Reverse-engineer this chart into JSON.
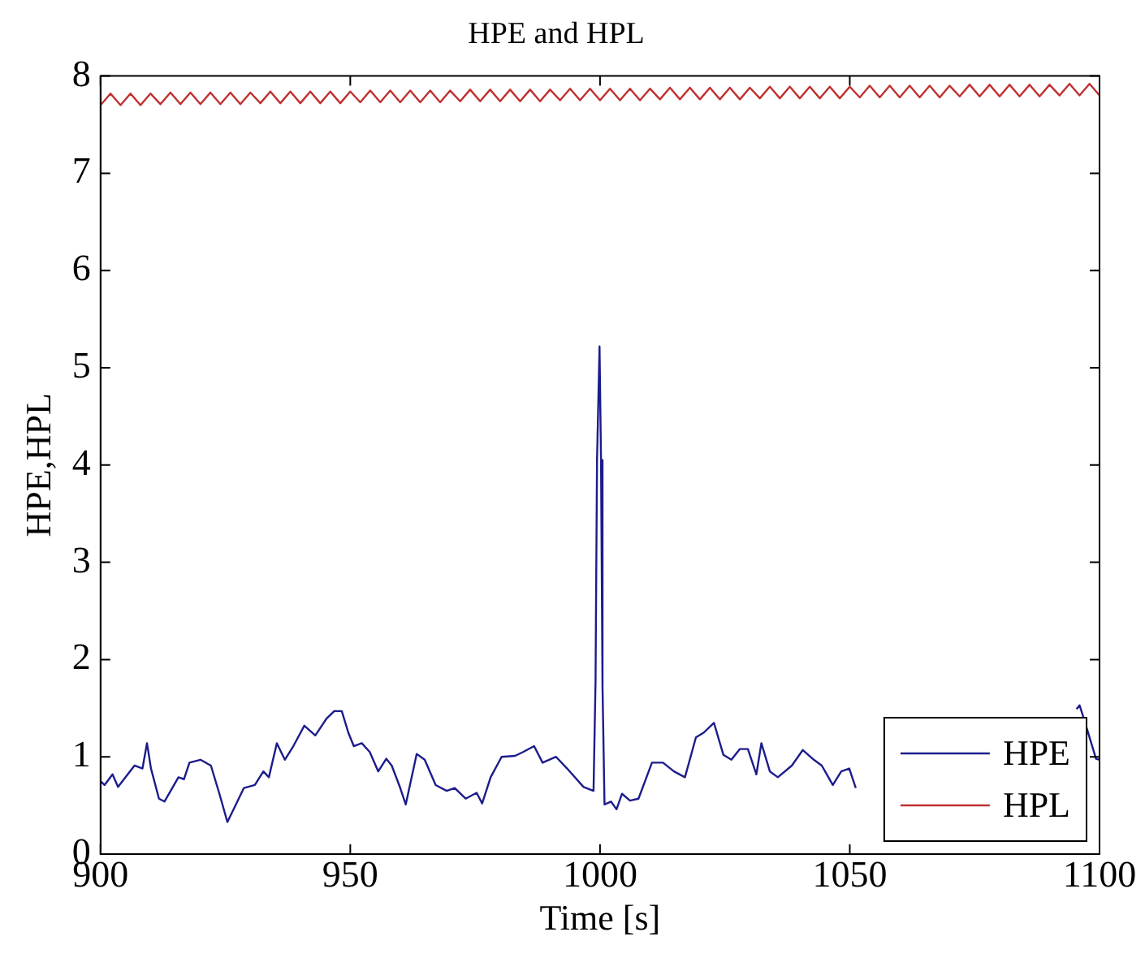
{
  "chart_data": {
    "type": "line",
    "title": "HPE and HPL",
    "xlabel": "Time [s]",
    "ylabel": "HPE,HPL",
    "xlim": [
      900,
      1100
    ],
    "xticks": [
      900,
      950,
      1000,
      1050,
      1100
    ],
    "ylim": [
      0,
      8
    ],
    "yticks": [
      0,
      1,
      2,
      3,
      4,
      5,
      6,
      7,
      8
    ],
    "legend": "bottom right",
    "series": [
      {
        "name": "HPE",
        "color": "#1c1c8c",
        "x": [
          900,
          900.8,
          902.4,
          903.5,
          906.8,
          908.4,
          909.3,
          910.1,
          911.7,
          912.8,
          915.6,
          916.7,
          917.8,
          920,
          922.1,
          923.8,
          925.4,
          927.1,
          928.7,
          930.9,
          932.6,
          933.7,
          935.3,
          936.9,
          938.6,
          940.8,
          943,
          945.2,
          946.8,
          948.3,
          949.6,
          950.7,
          952.3,
          953.9,
          955.6,
          957.2,
          958.3,
          960,
          961.1,
          963.3,
          964.9,
          967.1,
          969.3,
          970.9,
          973.1,
          975.3,
          976.4,
          978.1,
          980.3,
          983,
          984.6,
          986.8,
          988.5,
          991.2,
          993.4,
          996.7,
          998.7,
          999.1,
          999.4,
          999.9,
          1000.2,
          1000.5,
          1000.9,
          1002.2,
          1003.3,
          1004.4,
          1006,
          1007.7,
          1010.4,
          1012.6,
          1014.8,
          1017,
          1019.2,
          1020.8,
          1022.8,
          1024.7,
          1026.3,
          1028,
          1029.6,
          1031.3,
          1032.3,
          1034,
          1035.6,
          1038.4,
          1040.6,
          1042.8,
          1044.4,
          1046.6,
          1048.3,
          1049.9,
          1051.2,
          1075,
          1095.4,
          1096,
          1096.7,
          1099.3,
          1100
        ],
        "values": [
          0.75,
          0.71,
          0.82,
          0.69,
          0.91,
          0.88,
          1.14,
          0.88,
          0.57,
          0.54,
          0.79,
          0.77,
          0.94,
          0.97,
          0.91,
          0.62,
          0.33,
          0.51,
          0.68,
          0.71,
          0.85,
          0.79,
          1.14,
          0.97,
          1.11,
          1.32,
          1.22,
          1.39,
          1.47,
          1.47,
          1.25,
          1.11,
          1.14,
          1.05,
          0.85,
          0.98,
          0.91,
          0.68,
          0.51,
          1.03,
          0.97,
          0.71,
          0.65,
          0.68,
          0.57,
          0.63,
          0.52,
          0.79,
          1.0,
          1.01,
          1.05,
          1.11,
          0.94,
          1.0,
          0.88,
          0.69,
          0.65,
          1.77,
          4.05,
          5.22,
          4.05,
          1.72,
          0.51,
          0.54,
          0.46,
          0.62,
          0.55,
          0.57,
          0.94,
          0.94,
          0.85,
          0.79,
          1.2,
          1.25,
          1.35,
          1.02,
          0.97,
          1.08,
          1.08,
          0.82,
          1.14,
          0.85,
          0.79,
          0.91,
          1.07,
          0.97,
          0.91,
          0.71,
          0.85,
          0.88,
          0.68,
          null,
          1.49,
          1.53,
          1.42,
          0.98,
          0.97
        ]
      },
      {
        "name": "HPL",
        "color": "#c03030",
        "x": [
          900,
          902,
          904,
          906,
          908,
          910,
          912,
          914,
          916,
          918,
          920,
          922,
          924,
          926,
          928,
          930,
          932,
          934,
          936,
          938,
          940,
          942,
          944,
          946,
          948,
          950,
          952,
          954,
          956,
          958,
          960,
          962,
          964,
          966,
          968,
          970,
          972,
          974,
          976,
          978,
          980,
          982,
          984,
          986,
          988,
          990,
          992,
          994,
          996,
          998,
          1000,
          1002,
          1004,
          1006,
          1008,
          1010,
          1012,
          1014,
          1016,
          1018,
          1020,
          1022,
          1024,
          1026,
          1028,
          1030,
          1032,
          1034,
          1036,
          1038,
          1040,
          1042,
          1044,
          1046,
          1048,
          1050,
          1052,
          1054,
          1056,
          1058,
          1060,
          1062,
          1064,
          1066,
          1068,
          1070,
          1072,
          1074,
          1076,
          1078,
          1080,
          1082,
          1084,
          1086,
          1088,
          1090,
          1092,
          1094,
          1096,
          1098,
          1100
        ],
        "values": [
          7.7,
          7.82,
          7.7,
          7.82,
          7.7,
          7.82,
          7.71,
          7.83,
          7.71,
          7.83,
          7.71,
          7.83,
          7.71,
          7.83,
          7.71,
          7.83,
          7.72,
          7.84,
          7.72,
          7.84,
          7.72,
          7.84,
          7.72,
          7.84,
          7.72,
          7.84,
          7.73,
          7.85,
          7.73,
          7.85,
          7.73,
          7.85,
          7.73,
          7.85,
          7.73,
          7.85,
          7.74,
          7.86,
          7.74,
          7.86,
          7.74,
          7.86,
          7.74,
          7.86,
          7.74,
          7.86,
          7.75,
          7.87,
          7.75,
          7.87,
          7.75,
          7.87,
          7.75,
          7.87,
          7.75,
          7.87,
          7.76,
          7.88,
          7.76,
          7.88,
          7.76,
          7.88,
          7.76,
          7.88,
          7.76,
          7.88,
          7.77,
          7.89,
          7.77,
          7.89,
          7.77,
          7.89,
          7.77,
          7.89,
          7.77,
          7.89,
          7.78,
          7.9,
          7.78,
          7.9,
          7.78,
          7.9,
          7.78,
          7.9,
          7.78,
          7.9,
          7.79,
          7.91,
          7.79,
          7.91,
          7.79,
          7.91,
          7.79,
          7.91,
          7.79,
          7.91,
          7.8,
          7.92,
          7.8,
          7.92,
          7.8
        ]
      }
    ]
  }
}
